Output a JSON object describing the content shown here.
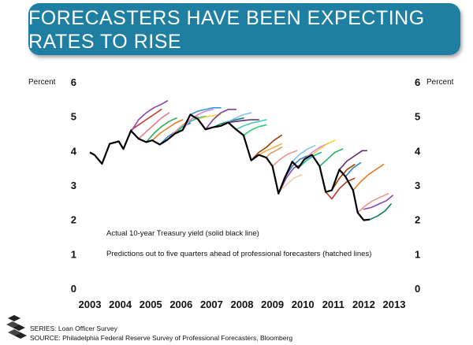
{
  "header": {
    "title_line1": "FORECASTERS HAVE BEEN EXPECTING",
    "title_line2": "RATES TO RISE",
    "banner_color": "#1F7FA3"
  },
  "footer": {
    "series": "SERIES: Loan Officer Survey",
    "source": "SOURCE: Philadelphia Federal Reserve Survey of Professional Forecasters, Bloomberg"
  },
  "chart_data": {
    "type": "line",
    "ylabel_left": "Percent",
    "ylabel_right": "Percent",
    "xlim": [
      2003,
      2013.2
    ],
    "ylim": [
      0,
      6
    ],
    "x_ticks": [
      2003,
      2004,
      2005,
      2006,
      2007,
      2008,
      2009,
      2010,
      2011,
      2012,
      2013
    ],
    "y_ticks": [
      0,
      1,
      2,
      3,
      4,
      5,
      6
    ],
    "grid": false,
    "annotations": [
      "Actual 10-year Treasury yield (solid black line)",
      "Predictions out to five quarters ahead of professional forecasters (hatched lines)"
    ],
    "actual": {
      "color": "#000000",
      "points": [
        [
          2003.0,
          3.95
        ],
        [
          2003.15,
          3.88
        ],
        [
          2003.4,
          3.62
        ],
        [
          2003.65,
          4.2
        ],
        [
          2003.95,
          4.27
        ],
        [
          2004.1,
          4.05
        ],
        [
          2004.35,
          4.58
        ],
        [
          2004.6,
          4.35
        ],
        [
          2004.85,
          4.25
        ],
        [
          2005.05,
          4.3
        ],
        [
          2005.3,
          4.18
        ],
        [
          2005.55,
          4.32
        ],
        [
          2005.8,
          4.5
        ],
        [
          2006.05,
          4.6
        ],
        [
          2006.3,
          5.05
        ],
        [
          2006.55,
          4.92
        ],
        [
          2006.8,
          4.62
        ],
        [
          2007.05,
          4.68
        ],
        [
          2007.3,
          4.72
        ],
        [
          2007.55,
          4.82
        ],
        [
          2007.8,
          4.62
        ],
        [
          2008.05,
          4.45
        ],
        [
          2008.3,
          3.72
        ],
        [
          2008.55,
          3.88
        ],
        [
          2008.8,
          3.8
        ],
        [
          2009.0,
          3.55
        ],
        [
          2009.2,
          2.75
        ],
        [
          2009.4,
          3.2
        ],
        [
          2009.65,
          3.68
        ],
        [
          2009.85,
          3.5
        ],
        [
          2010.05,
          3.75
        ],
        [
          2010.3,
          3.88
        ],
        [
          2010.55,
          3.55
        ],
        [
          2010.75,
          2.8
        ],
        [
          2010.95,
          2.85
        ],
        [
          2011.2,
          3.45
        ],
        [
          2011.4,
          3.25
        ],
        [
          2011.65,
          2.85
        ],
        [
          2011.8,
          2.2
        ],
        [
          2012.0,
          1.98
        ],
        [
          2012.2,
          2.0
        ]
      ]
    },
    "forecasts": [
      {
        "color": "#c0392b",
        "points": [
          [
            2004.1,
            4.05
          ],
          [
            2004.35,
            4.6
          ],
          [
            2004.6,
            4.75
          ],
          [
            2004.85,
            4.9
          ],
          [
            2005.1,
            5.05
          ],
          [
            2005.35,
            5.2
          ]
        ]
      },
      {
        "color": "#8e44ad",
        "points": [
          [
            2004.35,
            4.55
          ],
          [
            2004.6,
            4.9
          ],
          [
            2004.85,
            5.1
          ],
          [
            2005.1,
            5.25
          ],
          [
            2005.35,
            5.35
          ],
          [
            2005.55,
            5.45
          ]
        ]
      },
      {
        "color": "#e67e7e",
        "points": [
          [
            2004.6,
            4.35
          ],
          [
            2004.85,
            4.55
          ],
          [
            2005.1,
            4.75
          ],
          [
            2005.35,
            4.95
          ],
          [
            2005.6,
            5.1
          ]
        ]
      },
      {
        "color": "#27ae60",
        "points": [
          [
            2004.85,
            4.25
          ],
          [
            2005.1,
            4.5
          ],
          [
            2005.35,
            4.7
          ],
          [
            2005.6,
            4.85
          ],
          [
            2005.85,
            4.95
          ]
        ]
      },
      {
        "color": "#e67e22",
        "points": [
          [
            2005.05,
            4.3
          ],
          [
            2005.3,
            4.5
          ],
          [
            2005.55,
            4.65
          ],
          [
            2005.8,
            4.8
          ],
          [
            2006.05,
            4.9
          ]
        ]
      },
      {
        "color": "#2e86c1",
        "points": [
          [
            2005.3,
            4.18
          ],
          [
            2005.55,
            4.4
          ],
          [
            2005.8,
            4.55
          ],
          [
            2006.05,
            4.7
          ],
          [
            2006.3,
            4.8
          ]
        ]
      },
      {
        "color": "#f1948a",
        "points": [
          [
            2005.55,
            4.32
          ],
          [
            2005.8,
            4.55
          ],
          [
            2006.05,
            4.75
          ],
          [
            2006.3,
            4.9
          ],
          [
            2006.55,
            5.0
          ]
        ]
      },
      {
        "color": "#1abc9c",
        "points": [
          [
            2005.8,
            4.5
          ],
          [
            2006.05,
            4.7
          ],
          [
            2006.3,
            4.85
          ],
          [
            2006.55,
            4.95
          ],
          [
            2006.8,
            5.0
          ]
        ]
      },
      {
        "color": "#d98cd9",
        "points": [
          [
            2006.05,
            4.6
          ],
          [
            2006.3,
            4.9
          ],
          [
            2006.55,
            5.05
          ],
          [
            2006.8,
            5.15
          ],
          [
            2007.05,
            5.2
          ]
        ]
      },
      {
        "color": "#3498db",
        "points": [
          [
            2006.3,
            5.05
          ],
          [
            2006.55,
            5.15
          ],
          [
            2006.8,
            5.2
          ],
          [
            2007.05,
            5.25
          ],
          [
            2007.3,
            5.25
          ]
        ]
      },
      {
        "color": "#f4d03f",
        "points": [
          [
            2006.55,
            4.92
          ],
          [
            2006.8,
            4.98
          ],
          [
            2007.05,
            5.02
          ],
          [
            2007.3,
            5.05
          ]
        ]
      },
      {
        "color": "#7d3c98",
        "points": [
          [
            2006.8,
            4.62
          ],
          [
            2007.05,
            4.9
          ],
          [
            2007.3,
            5.1
          ],
          [
            2007.55,
            5.2
          ],
          [
            2007.8,
            5.2
          ]
        ]
      },
      {
        "color": "#117a65",
        "points": [
          [
            2007.05,
            4.68
          ],
          [
            2007.3,
            4.78
          ],
          [
            2007.55,
            4.85
          ],
          [
            2007.8,
            4.9
          ],
          [
            2008.05,
            4.95
          ]
        ]
      },
      {
        "color": "#85c1e9",
        "points": [
          [
            2007.3,
            4.72
          ],
          [
            2007.55,
            4.85
          ],
          [
            2007.8,
            4.95
          ],
          [
            2008.05,
            5.05
          ],
          [
            2008.3,
            5.1
          ]
        ]
      },
      {
        "color": "#5b2c6f",
        "points": [
          [
            2007.55,
            4.82
          ],
          [
            2007.8,
            4.85
          ],
          [
            2008.05,
            4.88
          ],
          [
            2008.3,
            4.9
          ],
          [
            2008.55,
            4.9
          ]
        ]
      },
      {
        "color": "#48c9b0",
        "points": [
          [
            2007.8,
            4.62
          ],
          [
            2008.05,
            4.72
          ],
          [
            2008.3,
            4.8
          ],
          [
            2008.55,
            4.85
          ],
          [
            2008.8,
            4.9
          ]
        ]
      },
      {
        "color": "#2ecc71",
        "points": [
          [
            2008.05,
            4.45
          ],
          [
            2008.3,
            4.6
          ],
          [
            2008.55,
            4.7
          ],
          [
            2008.8,
            4.75
          ]
        ]
      },
      {
        "color": "#a04000",
        "points": [
          [
            2008.3,
            3.72
          ],
          [
            2008.55,
            3.95
          ],
          [
            2008.8,
            4.1
          ],
          [
            2009.05,
            4.3
          ],
          [
            2009.3,
            4.45
          ]
        ]
      },
      {
        "color": "#f5b041",
        "points": [
          [
            2008.55,
            3.88
          ],
          [
            2008.8,
            4.0
          ],
          [
            2009.05,
            4.1
          ],
          [
            2009.3,
            4.2
          ]
        ]
      },
      {
        "color": "#e59866",
        "points": [
          [
            2008.8,
            3.8
          ],
          [
            2008.9,
            3.9
          ],
          [
            2009.1,
            4.0
          ],
          [
            2009.3,
            4.1
          ]
        ]
      },
      {
        "color": "#f1948a",
        "points": [
          [
            2009.0,
            3.55
          ],
          [
            2009.25,
            3.75
          ],
          [
            2009.5,
            3.9
          ],
          [
            2009.8,
            4.0
          ]
        ]
      },
      {
        "color": "#8e44ad",
        "points": [
          [
            2009.2,
            2.75
          ],
          [
            2009.45,
            3.2
          ],
          [
            2009.7,
            3.5
          ],
          [
            2009.95,
            3.6
          ]
        ]
      },
      {
        "color": "#f5cba7",
        "points": [
          [
            2009.2,
            2.8
          ],
          [
            2009.45,
            3.0
          ],
          [
            2009.7,
            3.2
          ],
          [
            2009.95,
            3.3
          ]
        ]
      },
      {
        "color": "#2e86c1",
        "points": [
          [
            2009.4,
            3.2
          ],
          [
            2009.65,
            3.55
          ],
          [
            2009.9,
            3.75
          ],
          [
            2010.15,
            3.85
          ]
        ]
      },
      {
        "color": "#85c1e9",
        "points": [
          [
            2009.65,
            3.68
          ],
          [
            2009.9,
            3.9
          ],
          [
            2010.15,
            4.05
          ],
          [
            2010.4,
            4.15
          ]
        ]
      },
      {
        "color": "#1abc9c",
        "points": [
          [
            2009.85,
            3.5
          ],
          [
            2010.1,
            3.7
          ],
          [
            2010.35,
            3.85
          ],
          [
            2010.6,
            3.95
          ]
        ]
      },
      {
        "color": "#d98cd9",
        "points": [
          [
            2010.05,
            3.75
          ],
          [
            2010.3,
            3.95
          ],
          [
            2010.55,
            4.1
          ],
          [
            2010.8,
            4.2
          ]
        ]
      },
      {
        "color": "#f4d03f",
        "points": [
          [
            2010.3,
            3.88
          ],
          [
            2010.55,
            4.05
          ],
          [
            2010.8,
            4.2
          ],
          [
            2011.05,
            4.3
          ]
        ]
      },
      {
        "color": "#27ae60",
        "points": [
          [
            2010.55,
            3.55
          ],
          [
            2010.8,
            3.75
          ],
          [
            2011.05,
            3.95
          ],
          [
            2011.3,
            4.05
          ]
        ]
      },
      {
        "color": "#c0392b",
        "points": [
          [
            2010.75,
            2.8
          ],
          [
            2010.95,
            2.6
          ],
          [
            2011.2,
            2.9
          ],
          [
            2011.45,
            3.1
          ],
          [
            2011.7,
            3.2
          ]
        ]
      },
      {
        "color": "#a04000",
        "points": [
          [
            2010.95,
            2.85
          ],
          [
            2011.2,
            3.2
          ],
          [
            2011.45,
            3.45
          ],
          [
            2011.7,
            3.6
          ]
        ]
      },
      {
        "color": "#5b2c6f",
        "points": [
          [
            2011.2,
            3.45
          ],
          [
            2011.45,
            3.7
          ],
          [
            2011.7,
            3.85
          ],
          [
            2011.95,
            4.0
          ],
          [
            2012.1,
            4.0
          ]
        ]
      },
      {
        "color": "#2e86c1",
        "points": [
          [
            2011.4,
            3.25
          ],
          [
            2011.65,
            3.5
          ],
          [
            2011.9,
            3.65
          ]
        ]
      },
      {
        "color": "#e67e22",
        "points": [
          [
            2011.65,
            2.85
          ],
          [
            2011.9,
            3.1
          ],
          [
            2012.15,
            3.3
          ],
          [
            2012.4,
            3.45
          ],
          [
            2012.65,
            3.6
          ]
        ]
      },
      {
        "color": "#f1948a",
        "points": [
          [
            2011.8,
            2.2
          ],
          [
            2012.05,
            2.4
          ],
          [
            2012.3,
            2.55
          ],
          [
            2012.55,
            2.65
          ],
          [
            2012.8,
            2.75
          ]
        ]
      },
      {
        "color": "#117a65",
        "points": [
          [
            2012.0,
            1.98
          ],
          [
            2012.2,
            2.0
          ],
          [
            2012.45,
            2.1
          ],
          [
            2012.7,
            2.25
          ],
          [
            2012.9,
            2.45
          ]
        ]
      },
      {
        "color": "#8e44ad",
        "points": [
          [
            2012.0,
            2.3
          ],
          [
            2012.25,
            2.35
          ],
          [
            2012.5,
            2.45
          ],
          [
            2012.75,
            2.55
          ],
          [
            2012.95,
            2.7
          ]
        ]
      }
    ]
  }
}
